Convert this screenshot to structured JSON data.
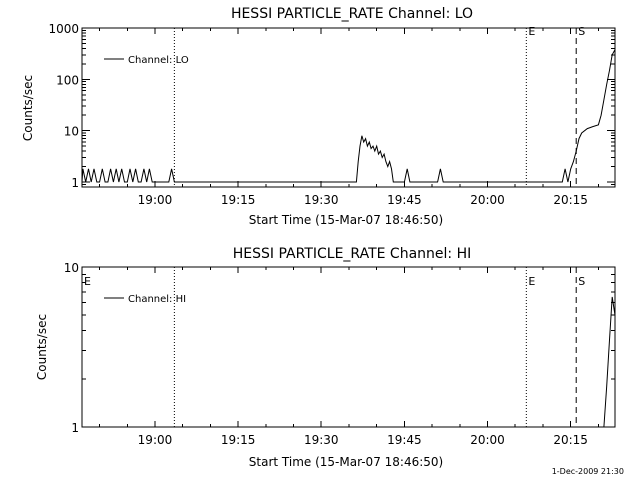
{
  "chart_data": [
    {
      "type": "line",
      "title": "HESSI PARTICLE_RATE Channel: LO",
      "xlabel": "Start Time (15-Mar-07 18:46:50)",
      "ylabel": "Counts/sec",
      "y_scale": "log",
      "ylim": [
        0.8,
        1000
      ],
      "x_range": [
        "18:46:50",
        "20:23:00"
      ],
      "x_ticks": [
        "19:00",
        "19:15",
        "19:30",
        "19:45",
        "20:00",
        "20:15"
      ],
      "y_ticks": [
        "1",
        "10",
        "100",
        "1000"
      ],
      "grid": false,
      "legend_position": "top-left",
      "series": [
        {
          "name": "Channel: LO",
          "x": [
            "18:46:50",
            "18:47:00",
            "18:47:30",
            "18:48:00",
            "18:48:30",
            "18:49:00",
            "18:49:30",
            "18:50:00",
            "18:50:30",
            "18:51:00",
            "18:51:30",
            "18:52:00",
            "18:52:30",
            "18:53:00",
            "18:53:30",
            "18:54:00",
            "18:54:30",
            "18:55:00",
            "18:55:30",
            "18:56:00",
            "18:56:30",
            "18:57:00",
            "18:57:30",
            "18:58:00",
            "18:58:30",
            "18:59:00",
            "18:59:30",
            "19:02:30",
            "19:03:00",
            "19:03:30",
            "19:36:20",
            "19:36:40",
            "19:37:00",
            "19:37:20",
            "19:37:40",
            "19:38:00",
            "19:38:20",
            "19:38:40",
            "19:39:00",
            "19:39:20",
            "19:39:40",
            "19:40:00",
            "19:40:20",
            "19:40:40",
            "19:41:00",
            "19:41:20",
            "19:41:40",
            "19:42:00",
            "19:42:20",
            "19:42:40",
            "19:43:00",
            "19:43:30",
            "19:45:00",
            "19:45:30",
            "19:46:00",
            "19:51:00",
            "19:51:30",
            "19:52:00",
            "20:13:30",
            "20:14:00",
            "20:14:30",
            "20:15:00",
            "20:15:30",
            "20:16:00",
            "20:16:30",
            "20:17:00",
            "20:18:00",
            "20:19:00",
            "20:20:00",
            "20:20:30",
            "20:21:00",
            "20:21:30",
            "20:22:00",
            "20:22:30",
            "20:23:00"
          ],
          "y": [
            1,
            1.8,
            1,
            1.8,
            1,
            1.8,
            1,
            1,
            1.8,
            1,
            1,
            1.8,
            1,
            1.8,
            1,
            1.8,
            1,
            1,
            1.8,
            1,
            1.8,
            1,
            1,
            1.8,
            1,
            1.8,
            1,
            1,
            1.8,
            1,
            1,
            2.5,
            5,
            8,
            6,
            7,
            5,
            6,
            4.5,
            5,
            4,
            5,
            3.5,
            4,
            3,
            3.5,
            2.5,
            2,
            2.5,
            1.8,
            1,
            1,
            1,
            1.8,
            1,
            1,
            1.8,
            1,
            1,
            1.8,
            1,
            1.8,
            2.5,
            4,
            7,
            9,
            11,
            12,
            13,
            20,
            40,
            80,
            150,
            300,
            380
          ]
        }
      ],
      "annotations": [
        {
          "text": "E",
          "x": "20:07:00",
          "style": "dotted"
        },
        {
          "text": "S",
          "x": "20:16:00",
          "style": "dashed"
        },
        {
          "text": "",
          "x": "19:03:30",
          "style": "dotted"
        },
        {
          "text": "",
          "x": "20:23:00",
          "style": "dash-dot"
        }
      ]
    },
    {
      "type": "line",
      "title": "HESSI PARTICLE_RATE Channel: HI",
      "xlabel": "Start Time (15-Mar-07 18:46:50)",
      "ylabel": "Counts/sec",
      "y_scale": "log",
      "ylim": [
        1,
        10
      ],
      "x_range": [
        "18:46:50",
        "20:23:00"
      ],
      "x_ticks": [
        "19:00",
        "19:15",
        "19:30",
        "19:45",
        "20:00",
        "20:15"
      ],
      "y_ticks": [
        "1",
        "10"
      ],
      "grid": false,
      "legend_position": "top-left",
      "series": [
        {
          "name": "Channel: HI",
          "x": [
            "20:21:00",
            "20:21:30",
            "20:22:00",
            "20:22:30",
            "20:23:00"
          ],
          "y": [
            1,
            1.8,
            3.5,
            6.5,
            5
          ]
        }
      ],
      "annotations": [
        {
          "text": "E",
          "x": "18:46:50",
          "style": "none"
        },
        {
          "text": "E",
          "x": "20:07:00",
          "style": "dotted"
        },
        {
          "text": "S",
          "x": "20:16:00",
          "style": "dashed"
        },
        {
          "text": "",
          "x": "19:03:30",
          "style": "dotted"
        },
        {
          "text": "",
          "x": "20:23:00",
          "style": "dash-dot"
        }
      ]
    }
  ],
  "footer": {
    "timestamp": "1-Dec-2009 21:30"
  }
}
